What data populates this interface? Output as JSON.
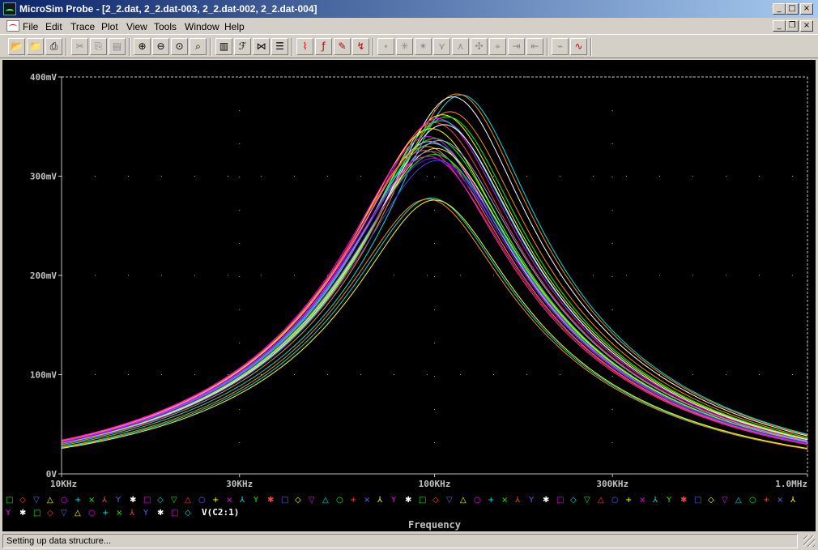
{
  "window": {
    "title": "MicroSim Probe - [2_2.dat, 2_2.dat-003, 2_2.dat-002, 2_2.dat-004]",
    "minimize_glyph": "_",
    "maximize_glyph": "□",
    "close_glyph": "×",
    "restore_glyph": "❐"
  },
  "menu": [
    "File",
    "Edit",
    "Trace",
    "Plot",
    "View",
    "Tools",
    "Window",
    "Help"
  ],
  "toolbar": {
    "groups": [
      [
        "open-icon",
        "open-append-icon",
        "print-icon"
      ],
      [
        "cut-icon",
        "copy-icon",
        "paste-icon"
      ],
      [
        "zoom-in-icon",
        "zoom-out-icon",
        "zoom-area-icon",
        "zoom-fit-icon"
      ],
      [
        "log-x-icon",
        "fourier-icon",
        "performance-icon",
        "log-y-icon"
      ],
      [
        "add-trace-icon",
        "eval-goal-icon",
        "label-icon",
        "mark-data-icon"
      ],
      [
        "cursor-peak-icon",
        "cursor-trough-icon",
        "cursor-slope-icon",
        "cursor-min-icon",
        "cursor-max-icon",
        "cursor-point-icon",
        "cursor-search-icon",
        "cursor-next-icon",
        "cursor-prev-icon"
      ],
      [
        "mark-label-icon",
        "display-cursor-icon"
      ]
    ]
  },
  "chart_data": {
    "type": "line",
    "x_scale": "log",
    "xlim": [
      10000,
      1000000
    ],
    "ylim": [
      0,
      400
    ],
    "x_ticks": [
      {
        "value": 10000,
        "label": "10KHz"
      },
      {
        "value": 30000,
        "label": "30KHz"
      },
      {
        "value": 100000,
        "label": "100KHz"
      },
      {
        "value": 300000,
        "label": "300KHz"
      },
      {
        "value": 1000000,
        "label": "1.0MHz"
      }
    ],
    "y_ticks": [
      {
        "value": 0,
        "label": "0V"
      },
      {
        "value": 100,
        "label": "100mV"
      },
      {
        "value": 200,
        "label": "200mV"
      },
      {
        "value": 300,
        "label": "300mV"
      },
      {
        "value": 400,
        "label": "400mV"
      }
    ],
    "xlabel": "Frequency",
    "trace_name": "V(C2:1)",
    "grid": "dotted",
    "series": [
      {
        "peak": 383,
        "f0": 115000,
        "bw": 1.13,
        "color": "#ff8c00"
      },
      {
        "peak": 382,
        "f0": 118000,
        "bw": 1.14,
        "color": "#00e0e0"
      },
      {
        "peak": 380,
        "f0": 112000,
        "bw": 1.12,
        "color": "#ffffff"
      },
      {
        "peak": 365,
        "f0": 110000,
        "bw": 1.1,
        "color": "#ff8c00"
      },
      {
        "peak": 362,
        "f0": 105000,
        "bw": 1.09,
        "color": "#ffff00"
      },
      {
        "peak": 360,
        "f0": 108000,
        "bw": 1.1,
        "color": "#00ff00"
      },
      {
        "peak": 358,
        "f0": 102000,
        "bw": 1.08,
        "color": "#ff00ff"
      },
      {
        "peak": 356,
        "f0": 104000,
        "bw": 1.08,
        "color": "#00e0e0"
      },
      {
        "peak": 354,
        "f0": 100000,
        "bw": 1.07,
        "color": "#ff4040"
      },
      {
        "peak": 352,
        "f0": 106000,
        "bw": 1.09,
        "color": "#ffffff"
      },
      {
        "peak": 348,
        "f0": 98000,
        "bw": 1.07,
        "color": "#ffff00"
      },
      {
        "peak": 340,
        "f0": 96000,
        "bw": 1.05,
        "color": "#ff00ff"
      },
      {
        "peak": 338,
        "f0": 100000,
        "bw": 1.06,
        "color": "#00ff00"
      },
      {
        "peak": 336,
        "f0": 103000,
        "bw": 1.06,
        "color": "#a0a0ff"
      },
      {
        "peak": 335,
        "f0": 97000,
        "bw": 1.05,
        "color": "#ffa0ff"
      },
      {
        "peak": 333,
        "f0": 99000,
        "bw": 1.05,
        "color": "#00e0e0"
      },
      {
        "peak": 330,
        "f0": 95000,
        "bw": 1.04,
        "color": "#ff8c00"
      },
      {
        "peak": 328,
        "f0": 101000,
        "bw": 1.05,
        "color": "#ffff00"
      },
      {
        "peak": 326,
        "f0": 94000,
        "bw": 1.04,
        "color": "#ff4040"
      },
      {
        "peak": 325,
        "f0": 98000,
        "bw": 1.04,
        "color": "#6060ff"
      },
      {
        "peak": 322,
        "f0": 100000,
        "bw": 1.03,
        "color": "#00ff00"
      },
      {
        "peak": 320,
        "f0": 96000,
        "bw": 1.03,
        "color": "#ff00ff"
      },
      {
        "peak": 318,
        "f0": 99000,
        "bw": 1.02,
        "color": "#8000ff"
      },
      {
        "peak": 316,
        "f0": 102000,
        "bw": 1.03,
        "color": "#4040ff"
      },
      {
        "peak": 278,
        "f0": 98000,
        "bw": 1.08,
        "color": "#00e0e0"
      },
      {
        "peak": 277,
        "f0": 96000,
        "bw": 1.07,
        "color": "#ff8c00"
      },
      {
        "peak": 276,
        "f0": 100000,
        "bw": 1.08,
        "color": "#ffff00"
      }
    ],
    "legend_symbols": [
      {
        "glyph": "□",
        "color": "#00ff00"
      },
      {
        "glyph": "◇",
        "color": "#ff4040"
      },
      {
        "glyph": "▽",
        "color": "#6060ff"
      },
      {
        "glyph": "△",
        "color": "#ffff00"
      },
      {
        "glyph": "○",
        "color": "#ff00ff"
      },
      {
        "glyph": "+",
        "color": "#00e0e0"
      },
      {
        "glyph": "×",
        "color": "#00ff00"
      },
      {
        "glyph": "⅄",
        "color": "#ff4040"
      },
      {
        "glyph": "Y",
        "color": "#6060ff"
      },
      {
        "glyph": "✱",
        "color": "#ffffff"
      },
      {
        "glyph": "□",
        "color": "#ff00ff"
      },
      {
        "glyph": "◇",
        "color": "#00e0e0"
      },
      {
        "glyph": "▽",
        "color": "#00ff00"
      },
      {
        "glyph": "△",
        "color": "#ff4040"
      },
      {
        "glyph": "○",
        "color": "#6060ff"
      },
      {
        "glyph": "+",
        "color": "#ffff00"
      },
      {
        "glyph": "×",
        "color": "#ff00ff"
      },
      {
        "glyph": "⅄",
        "color": "#00e0e0"
      },
      {
        "glyph": "Y",
        "color": "#00ff00"
      },
      {
        "glyph": "✱",
        "color": "#ff4040"
      },
      {
        "glyph": "□",
        "color": "#6060ff"
      },
      {
        "glyph": "◇",
        "color": "#ffff00"
      },
      {
        "glyph": "▽",
        "color": "#ff00ff"
      },
      {
        "glyph": "△",
        "color": "#00e0e0"
      },
      {
        "glyph": "○",
        "color": "#00ff00"
      },
      {
        "glyph": "+",
        "color": "#ff4040"
      },
      {
        "glyph": "×",
        "color": "#6060ff"
      },
      {
        "glyph": "⅄",
        "color": "#ffff00"
      },
      {
        "glyph": "Y",
        "color": "#ff00ff"
      },
      {
        "glyph": "✱",
        "color": "#ffffff"
      },
      {
        "glyph": "□",
        "color": "#00ff00"
      },
      {
        "glyph": "◇",
        "color": "#ff4040"
      },
      {
        "glyph": "▽",
        "color": "#6060ff"
      },
      {
        "glyph": "△",
        "color": "#ffff00"
      },
      {
        "glyph": "○",
        "color": "#ff00ff"
      },
      {
        "glyph": "+",
        "color": "#00e0e0"
      },
      {
        "glyph": "×",
        "color": "#00ff00"
      },
      {
        "glyph": "⅄",
        "color": "#ff4040"
      },
      {
        "glyph": "Y",
        "color": "#6060ff"
      },
      {
        "glyph": "✱",
        "color": "#ffffff"
      },
      {
        "glyph": "□",
        "color": "#ff00ff"
      },
      {
        "glyph": "◇",
        "color": "#00e0e0"
      },
      {
        "glyph": "▽",
        "color": "#00ff00"
      },
      {
        "glyph": "△",
        "color": "#ff4040"
      },
      {
        "glyph": "○",
        "color": "#6060ff"
      },
      {
        "glyph": "+",
        "color": "#ffff00"
      },
      {
        "glyph": "×",
        "color": "#ff00ff"
      },
      {
        "glyph": "⅄",
        "color": "#00e0e0"
      },
      {
        "glyph": "Y",
        "color": "#00ff00"
      },
      {
        "glyph": "✱",
        "color": "#ff4040"
      },
      {
        "glyph": "□",
        "color": "#6060ff"
      },
      {
        "glyph": "◇",
        "color": "#ffff00"
      },
      {
        "glyph": "▽",
        "color": "#ff00ff"
      },
      {
        "glyph": "△",
        "color": "#00e0e0"
      },
      {
        "glyph": "○",
        "color": "#00ff00"
      },
      {
        "glyph": "+",
        "color": "#ff4040"
      },
      {
        "glyph": "×",
        "color": "#6060ff"
      },
      {
        "glyph": "⅄",
        "color": "#ffff00"
      },
      {
        "glyph": "Y",
        "color": "#ff00ff"
      },
      {
        "glyph": "✱",
        "color": "#ffffff"
      },
      {
        "glyph": "□",
        "color": "#00ff00"
      },
      {
        "glyph": "◇",
        "color": "#ff4040"
      },
      {
        "glyph": "▽",
        "color": "#6060ff"
      },
      {
        "glyph": "△",
        "color": "#ffff00"
      },
      {
        "glyph": "○",
        "color": "#ff00ff"
      },
      {
        "glyph": "+",
        "color": "#00e0e0"
      },
      {
        "glyph": "×",
        "color": "#00ff00"
      },
      {
        "glyph": "⅄",
        "color": "#ff4040"
      },
      {
        "glyph": "Y",
        "color": "#6060ff"
      },
      {
        "glyph": "✱",
        "color": "#ffffff"
      },
      {
        "glyph": "□",
        "color": "#ff00ff"
      },
      {
        "glyph": "◇",
        "color": "#00e0e0"
      }
    ]
  },
  "status": {
    "text": "Setting up data structure..."
  },
  "colors": {
    "plot_bg": "#000000",
    "axis": "#c0c0c0",
    "grid": "#b0b0b0",
    "label": "#c0c0c0"
  }
}
